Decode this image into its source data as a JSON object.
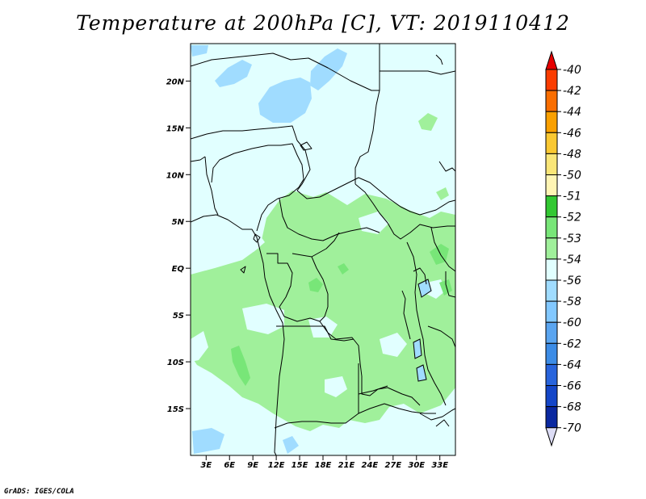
{
  "title": "Temperature at 200hPa [C], VT: 2019110412",
  "credit": "GrADS: IGES/COLA",
  "map": {
    "lon_range": [
      1,
      35
    ],
    "lat_range": [
      -20,
      24
    ],
    "lon_ticks": [
      "3E",
      "6E",
      "9E",
      "12E",
      "15E",
      "18E",
      "21E",
      "24E",
      "27E",
      "30E",
      "33E"
    ],
    "lat_ticks": [
      "20N",
      "15N",
      "10N",
      "5N",
      "EQ",
      "5S",
      "10S",
      "15S"
    ],
    "base_color": "#e1ffff"
  },
  "colorbar": {
    "levels": [
      "-40",
      "-42",
      "-44",
      "-46",
      "-48",
      "-50",
      "-51",
      "-52",
      "-53",
      "-54",
      "-56",
      "-58",
      "-60",
      "-62",
      "-64",
      "-66",
      "-68",
      "-70"
    ],
    "colors": [
      "#e60000",
      "#fa3c00",
      "#fa6e00",
      "#faa000",
      "#fac832",
      "#fae678",
      "#fff5b4",
      "#32c832",
      "#78e678",
      "#a0f09b",
      "#e1ffff",
      "#a0dcff",
      "#82c8ff",
      "#5aa5f0",
      "#3c8ce6",
      "#2864dc",
      "#1446c8",
      "#0a28a0",
      "#000082",
      "#dcdcf5"
    ]
  }
}
